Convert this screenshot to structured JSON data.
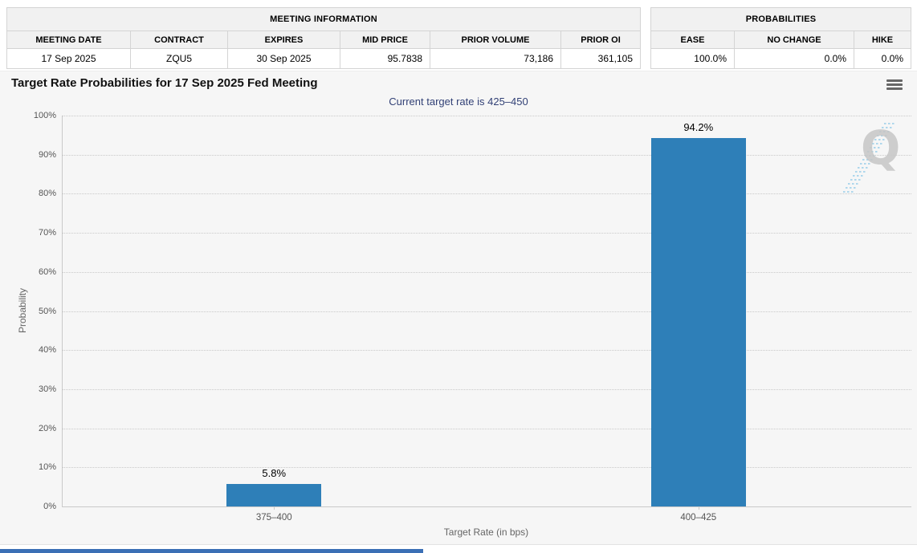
{
  "meeting_info_table": {
    "title": "MEETING INFORMATION",
    "columns": [
      "MEETING DATE",
      "CONTRACT",
      "EXPIRES",
      "MID PRICE",
      "PRIOR VOLUME",
      "PRIOR OI"
    ],
    "row": {
      "meeting_date": "17 Sep 2025",
      "contract": "ZQU5",
      "expires": "30 Sep 2025",
      "mid_price": "95.7838",
      "prior_volume": "73,186",
      "prior_oi": "361,105"
    }
  },
  "probabilities_table": {
    "title": "PROBABILITIES",
    "columns": [
      "EASE",
      "NO CHANGE",
      "HIKE"
    ],
    "row": {
      "ease": "100.0%",
      "no_change": "0.0%",
      "hike": "0.0%"
    }
  },
  "chart": {
    "title": "Target Rate Probabilities for 17 Sep 2025 Fed Meeting",
    "subtitle": "Current target rate is 425–450",
    "watermark_letter": "Q"
  },
  "chart_data": {
    "type": "bar",
    "categories": [
      "375–400",
      "400–425"
    ],
    "values": [
      5.8,
      94.2
    ],
    "data_labels": [
      "5.8%",
      "94.2%"
    ],
    "title": "Target Rate Probabilities for 17 Sep 2025 Fed Meeting",
    "subtitle": "Current target rate is 425–450",
    "xlabel": "Target Rate (in bps)",
    "ylabel": "Probability",
    "ylim": [
      0,
      100
    ],
    "ytick_step": 10,
    "ytick_labels": [
      "0%",
      "10%",
      "20%",
      "30%",
      "40%",
      "50%",
      "60%",
      "70%",
      "80%",
      "90%",
      "100%"
    ],
    "grid": "dotted horizontal",
    "legend": "none",
    "bar_color": "#2e7fb8"
  },
  "colors": {
    "bar": "#2e7fb8",
    "subtitle_text": "#324176",
    "card_background": "#f6f6f6",
    "table_header_background": "#f1f1f1",
    "bottom_bar": "#3b6fb5"
  }
}
